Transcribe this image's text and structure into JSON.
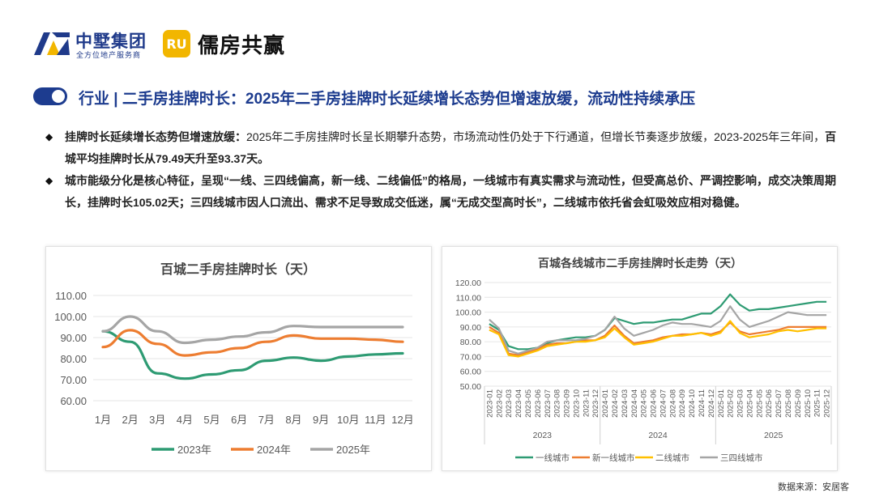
{
  "header": {
    "brand_a": {
      "name": "中墅集团",
      "subtitle": "全方位地产服务商",
      "icon": "zhongshu-logo-icon"
    },
    "brand_b": {
      "name": "儒房共赢",
      "icon": "rufang-logo-icon",
      "logo_letters": "RU"
    }
  },
  "title": {
    "toggle_icon": "toggle-icon",
    "text": "行业 | 二手房挂牌时长：2025年二手房挂牌时长延续增长态势但增速放缓，流动性持续承压"
  },
  "bullets": [
    {
      "bold_lead": "挂牌时长延续增长态势但增速放缓：",
      "text": "2025年二手房挂牌时长呈长期攀升态势，市场流动性仍处于下行通道，但增长节奏逐步放缓，2023-2025年三年间，",
      "bold_tail": "百城平均挂牌时长从79.49天升至93.37天。"
    },
    {
      "bold_lead": "城市能级分化是核心特征，呈现“一线、三四线偏高，新一线、二线偏低”的格局，一线城市有真实需求与流动性，但受高总价、严调控影响，成交决策周期长，挂牌时长105.02天；三四线城市因人口流出、需求不足导致成交低迷，属“无成交型高时长”，二线城市依托省会虹吸效应相对稳健。"
    }
  ],
  "source": "数据来源：安居客",
  "chart_data": [
    {
      "type": "line",
      "title": "百城二手房挂牌时长（天）",
      "categories": [
        "1月",
        "2月",
        "3月",
        "4月",
        "5月",
        "6月",
        "7月",
        "8月",
        "9月",
        "10月",
        "11月",
        "12月"
      ],
      "ylim": [
        60,
        110
      ],
      "yticks": [
        "60.00",
        "70.00",
        "80.00",
        "90.00",
        "100.00",
        "110.00"
      ],
      "series": [
        {
          "name": "2023年",
          "color": "#2e9b73",
          "values": [
            93,
            88,
            73,
            70.5,
            72.5,
            74.5,
            79,
            80.5,
            79,
            81,
            82,
            82.5
          ]
        },
        {
          "name": "2024年",
          "color": "#ed7d31",
          "values": [
            85.5,
            93.5,
            87,
            81.5,
            83,
            85,
            88,
            91,
            89.5,
            89.5,
            89,
            88
          ]
        },
        {
          "name": "2025年",
          "color": "#a5a5a5",
          "values": [
            93,
            100,
            93,
            87.5,
            89,
            90.5,
            92.5,
            95.5,
            95,
            95,
            95,
            95
          ]
        }
      ]
    },
    {
      "type": "line",
      "title": "百城各线城市二手房挂牌时长走势（天）",
      "x": [
        "2023-01",
        "2023-02",
        "2023-03",
        "2023-04",
        "2023-05",
        "2023-06",
        "2023-07",
        "2023-08",
        "2023-09",
        "2023-10",
        "2023-11",
        "2023-12",
        "2024-01",
        "2024-02",
        "2024-03",
        "2024-04",
        "2024-05",
        "2024-06",
        "2024-07",
        "2024-08",
        "2024-09",
        "2024-10",
        "2024-11",
        "2024-12",
        "2025-01",
        "2025-02",
        "2025-03",
        "2025-04",
        "2025-05",
        "2025-06",
        "2025-07",
        "2025-08",
        "2025-09",
        "2025-10",
        "2025-11",
        "2025-12"
      ],
      "year_groups": [
        "2023",
        "2024",
        "2025"
      ],
      "ylim": [
        50,
        120
      ],
      "yticks": [
        "50.00",
        "60.00",
        "70.00",
        "80.00",
        "90.00",
        "100.00",
        "110.00",
        "120.00"
      ],
      "series": [
        {
          "name": "一线城市",
          "color": "#2e9b73",
          "values": [
            92,
            88,
            77,
            75,
            75,
            76,
            79,
            81,
            82,
            83,
            83,
            84,
            88,
            96,
            94,
            92,
            93,
            93,
            94,
            95,
            95,
            97,
            99,
            99,
            104,
            112,
            105,
            101,
            102,
            102,
            103,
            104,
            105,
            106,
            107,
            107
          ]
        },
        {
          "name": "新一线城市",
          "color": "#ed7d31",
          "values": [
            90,
            86,
            72,
            71,
            73,
            75,
            78,
            79,
            79,
            80,
            81,
            81,
            84,
            91,
            84,
            79,
            80,
            81,
            83,
            84,
            85,
            85,
            86,
            85,
            87,
            93,
            87,
            85,
            86,
            87,
            88,
            90,
            90,
            90,
            90,
            90
          ]
        },
        {
          "name": "二线城市",
          "color": "#ffc000",
          "values": [
            88,
            85,
            71,
            70,
            72,
            74,
            77,
            78,
            79,
            80,
            80,
            81,
            83,
            89,
            83,
            78,
            79,
            80,
            82,
            84,
            84,
            85,
            86,
            84,
            86,
            94,
            86,
            83,
            84,
            85,
            87,
            88,
            87,
            88,
            89,
            89
          ]
        },
        {
          "name": "三四线城市",
          "color": "#a5a5a5",
          "values": [
            95,
            89,
            74,
            72,
            74,
            76,
            80,
            81,
            81,
            81,
            82,
            84,
            88,
            97,
            89,
            84,
            86,
            88,
            91,
            93,
            92,
            92,
            91,
            90,
            94,
            104,
            95,
            90,
            92,
            94,
            97,
            100,
            99,
            98,
            98,
            98
          ]
        }
      ]
    }
  ]
}
